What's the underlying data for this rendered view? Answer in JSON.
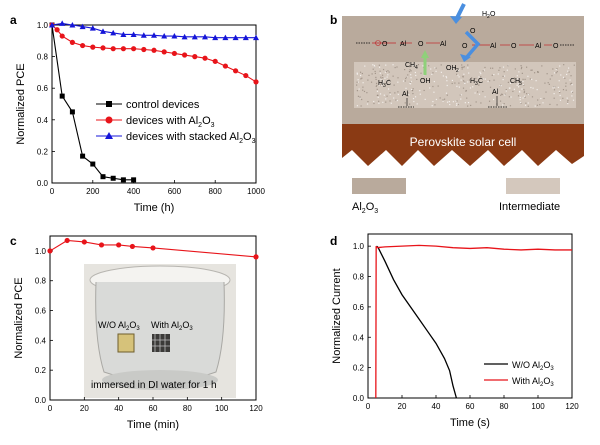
{
  "panels": {
    "a": {
      "letter": "a",
      "legend": [
        {
          "id": "control",
          "label": "control devices"
        },
        {
          "id": "al2o3",
          "label": "devices with Al",
          "sub": "2",
          "tail": "O",
          "sub2": "3"
        },
        {
          "id": "stacked",
          "label": "devices with stacked Al",
          "sub": "2",
          "tail": "O",
          "sub2": "3"
        }
      ]
    },
    "b": {
      "letter": "b",
      "cell_label": "Perovskite solar cell",
      "legend_al2o3": {
        "main": "Al",
        "sub": "2",
        "tail": "O",
        "sub2": "3"
      },
      "legend_intermediate": "Intermediate",
      "molecules": {
        "al": "Al",
        "o": "O",
        "h2o": "H",
        "h2o_sub": "2",
        "h2o_tail": "O",
        "ch4": "CH",
        "ch4_sub": "4",
        "oh_right": "OH",
        "oh_right_sub": "",
        "oh_left": "OH",
        "h3c": "H",
        "h3c_sub": "3",
        "h3c_tail": "C",
        "ch3": "CH",
        "ch3_sub": "3"
      }
    },
    "c": {
      "letter": "c",
      "photo_label_left": "W/O Al",
      "photo_label_left_sub": "2",
      "photo_label_left_tail": "O",
      "photo_label_left_sub2": "3",
      "photo_label_right": "With Al",
      "photo_label_right_sub": "2",
      "photo_label_right_tail": "O",
      "photo_label_right_sub2": "3",
      "photo_caption": "immersed in DI water for 1 h"
    },
    "d": {
      "letter": "d",
      "legend": [
        {
          "id": "wo",
          "label": "W/O Al",
          "sub": "2",
          "tail": "O",
          "sub2": "3"
        },
        {
          "id": "with",
          "label": "With Al",
          "sub": "2",
          "tail": "O",
          "sub2": "3"
        }
      ]
    }
  },
  "colors": {
    "control": "#000000",
    "al2o3": "#e8141a",
    "stacked": "#1515d8",
    "soil": "#8a3a14",
    "layer": "#b9aa9c",
    "intermediate": "#d4c8bd",
    "arrow": "#4a8fe0",
    "green_arrow": "#8fd07a"
  },
  "chart_data": [
    {
      "panel": "a",
      "type": "line",
      "xlabel": "Time (h)",
      "ylabel": "Normalized PCE",
      "xlim": [
        0,
        1000
      ],
      "ylim": [
        0.0,
        1.0
      ],
      "xticks": [
        0,
        200,
        400,
        600,
        800,
        1000
      ],
      "yticks": [
        0.0,
        0.2,
        0.4,
        0.6,
        0.8,
        1.0
      ],
      "ytick_labels": [
        "0.0",
        "0.2",
        "0.4",
        "0.6",
        "0.8",
        "1.0"
      ],
      "series": [
        {
          "name": "control devices",
          "color": "#000000",
          "marker": "square",
          "x": [
            0,
            50,
            100,
            150,
            200,
            250,
            300,
            350,
            400
          ],
          "y": [
            1.0,
            0.55,
            0.45,
            0.17,
            0.12,
            0.04,
            0.03,
            0.02,
            0.02
          ]
        },
        {
          "name": "devices with Al2O3",
          "color": "#e8141a",
          "marker": "circle",
          "x": [
            0,
            25,
            50,
            100,
            150,
            200,
            250,
            300,
            350,
            400,
            450,
            500,
            550,
            600,
            650,
            700,
            750,
            800,
            850,
            900,
            950,
            1000
          ],
          "y": [
            1.0,
            0.97,
            0.93,
            0.89,
            0.87,
            0.86,
            0.855,
            0.85,
            0.85,
            0.85,
            0.845,
            0.84,
            0.83,
            0.82,
            0.81,
            0.8,
            0.79,
            0.77,
            0.74,
            0.71,
            0.68,
            0.64
          ]
        },
        {
          "name": "devices with stacked Al2O3",
          "color": "#1515d8",
          "marker": "triangle",
          "x": [
            0,
            50,
            100,
            150,
            200,
            250,
            300,
            350,
            400,
            450,
            500,
            550,
            600,
            650,
            700,
            750,
            800,
            850,
            900,
            950,
            1000
          ],
          "y": [
            1.0,
            1.01,
            1.0,
            0.99,
            0.98,
            0.96,
            0.95,
            0.94,
            0.94,
            0.935,
            0.935,
            0.93,
            0.93,
            0.925,
            0.925,
            0.925,
            0.92,
            0.92,
            0.92,
            0.92,
            0.92
          ]
        }
      ]
    },
    {
      "panel": "c",
      "type": "line",
      "xlabel": "Time (min)",
      "ylabel": "Normalized PCE",
      "xlim": [
        0,
        120
      ],
      "ylim": [
        0.0,
        1.1
      ],
      "xticks": [
        0,
        20,
        40,
        60,
        80,
        100,
        120
      ],
      "yticks": [
        0.0,
        0.2,
        0.4,
        0.6,
        0.8,
        1.0
      ],
      "ytick_labels": [
        "0.0",
        "0.2",
        "0.4",
        "0.6",
        "0.8",
        "1.0"
      ],
      "series": [
        {
          "name": "With Al2O3",
          "color": "#e8141a",
          "marker": "circle",
          "x": [
            0,
            10,
            20,
            30,
            40,
            48,
            60,
            120
          ],
          "y": [
            1.0,
            1.07,
            1.06,
            1.04,
            1.04,
            1.03,
            1.02,
            0.96
          ]
        }
      ]
    },
    {
      "panel": "d",
      "type": "line",
      "xlabel": "Time (s)",
      "ylabel": "Normalized Current",
      "xlim": [
        0,
        120
      ],
      "ylim": [
        0.0,
        1.08
      ],
      "xticks": [
        0,
        20,
        40,
        60,
        80,
        100,
        120
      ],
      "yticks": [
        0.0,
        0.2,
        0.4,
        0.6,
        0.8,
        1.0
      ],
      "ytick_labels": [
        "0.0",
        "0.2",
        "0.4",
        "0.6",
        "0.8",
        "1.0"
      ],
      "series": [
        {
          "name": "W/O Al2O3",
          "color": "#000000",
          "x": [
            5,
            6,
            10,
            15,
            20,
            25,
            30,
            35,
            40,
            45,
            48,
            50,
            52
          ],
          "y": [
            1.0,
            0.99,
            0.9,
            0.78,
            0.68,
            0.6,
            0.52,
            0.44,
            0.36,
            0.26,
            0.18,
            0.08,
            0.0
          ]
        },
        {
          "name": "With Al2O3",
          "color": "#e8141a",
          "x": [
            4.6,
            4.8,
            5,
            10,
            20,
            30,
            40,
            50,
            60,
            70,
            80,
            90,
            100,
            110,
            120
          ],
          "y": [
            0.0,
            1.0,
            0.99,
            0.995,
            1.0,
            1.005,
            1.0,
            0.99,
            0.985,
            0.99,
            0.98,
            0.975,
            0.98,
            0.975,
            0.975
          ]
        }
      ]
    }
  ]
}
